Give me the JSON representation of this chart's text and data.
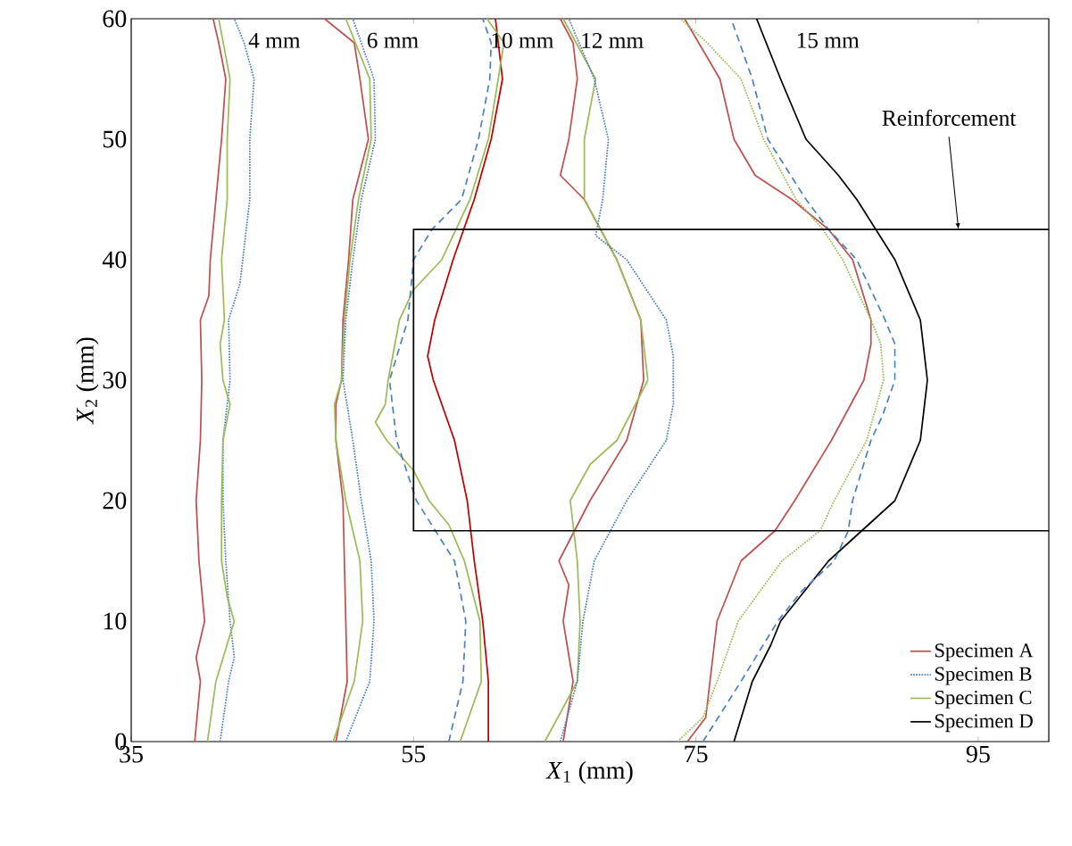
{
  "chart_data": {
    "type": "line",
    "xlabel": "*X*$_{1}$ (mm)",
    "ylabel": "*X*$_{2}$ (mm)",
    "xlim": [
      35,
      100
    ],
    "ylim": [
      0,
      60
    ],
    "xticks": [
      35,
      55,
      75,
      95
    ],
    "yticks": [
      0,
      10,
      20,
      30,
      40,
      50,
      60
    ],
    "grid": false,
    "legend": "bottom right",
    "marker": "none",
    "series": [
      {
        "name": "Specimen A",
        "color": "#c0504d",
        "line_style": "solid",
        "x": [
          39.5,
          39.9,
          39.6,
          40.2,
          39.8,
          39.6,
          39.9,
          40.0,
          39.9,
          40.5,
          40.6,
          41.0,
          41.4,
          41.7,
          41.2,
          40.8
        ],
        "values": [
          0,
          5,
          7,
          10,
          15,
          20,
          25,
          30,
          35,
          37,
          40,
          45,
          50,
          55,
          58,
          60
        ]
      },
      {
        "name": "Specimen B",
        "color": "#4f81bd",
        "line_style": "dotted",
        "x": [
          41.3,
          41.9,
          42.3,
          42.0,
          41.7,
          41.5,
          41.5,
          42.0,
          41.9,
          42.7,
          42.9,
          43.4,
          43.4,
          43.7,
          43.0,
          42.3
        ],
        "values": [
          0,
          5,
          7,
          10,
          15,
          20,
          25,
          30,
          35,
          38,
          40,
          45,
          50,
          55,
          58,
          60
        ]
      },
      {
        "name": "Specimen C",
        "color": "#9bbb59",
        "line_style": "solid",
        "x": [
          40.4,
          41.0,
          42.3,
          41.8,
          41.4,
          41.4,
          41.5,
          42.0,
          41.5,
          41.3,
          41.6,
          41.4,
          41.8,
          41.8,
          42.0,
          41.2
        ],
        "values": [
          0,
          5,
          10,
          12,
          15,
          20,
          25,
          28,
          30,
          33,
          35,
          40,
          45,
          50,
          55,
          60
        ]
      },
      {
        "name": "Specimen D",
        "color": "#000000",
        "line_style": "solid",
        "x": [
          77.7,
          79.0,
          80.3,
          81.0,
          84.4,
          89.1,
          90.9,
          91.4,
          90.9,
          89.1,
          86.4,
          85.1,
          82.8,
          81.0,
          79.3
        ],
        "values": [
          0,
          5,
          8,
          10,
          15,
          20,
          25,
          30,
          35,
          40,
          45,
          47,
          50,
          55,
          60
        ]
      },
      {
        "color": "#c0504d",
        "line_style": "solid",
        "x": [
          49.5,
          50.3,
          50.2,
          50.1,
          50.0,
          49.5,
          49.5,
          49.9,
          50.0,
          50.4,
          50.7,
          51.8,
          51.2,
          50.8,
          48.7
        ],
        "values": [
          0,
          5,
          10,
          15,
          20,
          25,
          28,
          30,
          35,
          40,
          45,
          50,
          55,
          58,
          60
        ]
      },
      {
        "color": "#9bbb59",
        "line_style": "solid",
        "x": [
          49.3,
          50.8,
          51.4,
          51.2,
          50.2,
          49.5,
          49.4,
          49.9,
          50.1,
          50.5,
          51.1,
          52.0,
          51.9,
          50.2
        ],
        "values": [
          0,
          5,
          10,
          15,
          20,
          25,
          28,
          30,
          35,
          40,
          45,
          50,
          55,
          60
        ]
      },
      {
        "color": "#4f81bd",
        "line_style": "dotted",
        "x": [
          50.2,
          51.9,
          52.2,
          52.0,
          51.3,
          50.7,
          50.0,
          50.2,
          50.7,
          51.3,
          52.3,
          52.2,
          50.7
        ],
        "values": [
          0,
          5,
          10,
          15,
          20,
          25,
          30,
          35,
          40,
          45,
          50,
          55,
          60
        ]
      },
      {
        "color": "#c00000",
        "line_style": "solid",
        "x": [
          60.3,
          60.3,
          59.9,
          59.3,
          58.8,
          57.9,
          56.4,
          56.0,
          56.5,
          57.8,
          59.3,
          60.5,
          61.3,
          60.8
        ],
        "values": [
          0,
          5,
          10,
          15,
          20,
          25,
          30,
          32,
          35,
          40,
          45,
          50,
          55,
          60
        ]
      },
      {
        "color": "#9bbb59",
        "line_style": "solid",
        "x": [
          58.3,
          59.8,
          59.7,
          58.6,
          57.5,
          56.1,
          55.0,
          53.1,
          52.3,
          53.0,
          53.2,
          54.0,
          55.0,
          57.0,
          59.0,
          60.3,
          61.0,
          61.4,
          60.2
        ],
        "values": [
          0,
          5,
          10,
          15,
          18,
          20,
          22.5,
          25,
          26.5,
          28,
          30,
          35,
          37.5,
          40,
          45,
          50,
          55,
          58,
          60
        ]
      },
      {
        "color": "#4f81bd",
        "line_style": "dashed",
        "x": [
          57.5,
          58.5,
          58.7,
          57.9,
          55.2,
          53.8,
          53.3,
          54.6,
          55.0,
          56.3,
          58.4,
          59.6,
          60.4,
          60.5,
          59.9
        ],
        "values": [
          0,
          5,
          10,
          15,
          20,
          25,
          30,
          35,
          40,
          42.5,
          45,
          50,
          55,
          58,
          60
        ]
      },
      {
        "color": "#c0504d",
        "line_style": "solid",
        "x": [
          65.6,
          66.3,
          65.6,
          66.0,
          65.3,
          67.5,
          70.1,
          71.3,
          71.1,
          69.4,
          67.1,
          65.4,
          66.0,
          66.6,
          66.3,
          65.4
        ],
        "values": [
          0,
          5,
          10,
          13,
          15,
          20,
          25,
          30,
          35,
          40,
          45,
          47,
          50,
          55,
          58,
          60
        ]
      },
      {
        "color": "#9bbb59",
        "line_style": "solid",
        "x": [
          64.3,
          66.6,
          66.8,
          66.6,
          66.1,
          67.5,
          69.4,
          71.6,
          71.1,
          69.4,
          67.1,
          67.1,
          67.9,
          65.6
        ],
        "values": [
          0,
          5,
          10,
          15,
          20,
          23,
          25,
          30,
          35,
          40,
          45,
          50,
          55,
          60
        ]
      },
      {
        "color": "#4f81bd",
        "line_style": "dotted",
        "x": [
          65.4,
          66.6,
          67.0,
          67.8,
          70.1,
          72.9,
          73.4,
          73.4,
          72.9,
          70.1,
          67.9,
          68.4,
          68.8,
          67.8,
          66.0
        ],
        "values": [
          0,
          5,
          10,
          15,
          20,
          25,
          28,
          32,
          35,
          40,
          42,
          45,
          50,
          55,
          60
        ]
      },
      {
        "color": "#c0504d",
        "line_style": "solid",
        "x": [
          74.4,
          75.7,
          76.0,
          76.5,
          78.2,
          80.6,
          82.0,
          84.6,
          86.9,
          87.4,
          87.4,
          86.1,
          84.4,
          81.8,
          79.2,
          77.7,
          76.7,
          74.2
        ],
        "values": [
          0,
          2,
          5,
          10,
          15,
          17.5,
          20,
          25,
          30,
          33,
          35,
          40,
          42.5,
          45,
          47,
          50,
          55,
          60
        ]
      },
      {
        "color": "#9bbb59",
        "line_style": "dotted",
        "x": [
          73.7,
          75.5,
          76.5,
          78.0,
          81.1,
          83.8,
          84.8,
          87.1,
          88.3,
          88.1,
          87.4,
          85.4,
          84.0,
          82.1,
          79.8,
          78.2,
          75.8,
          73.9
        ],
        "values": [
          0,
          2,
          5,
          10,
          15,
          17.5,
          20,
          25,
          30,
          33,
          35,
          40,
          42.5,
          45,
          50,
          55,
          58,
          60
        ]
      },
      {
        "color": "#4f81bd",
        "line_style": "dashed",
        "x": [
          75.5,
          78.2,
          80.8,
          82.5,
          84.8,
          85.8,
          86.1,
          87.4,
          88.2,
          89.1,
          89.1,
          88.4,
          86.4,
          84.4,
          82.8,
          80.1,
          79.0,
          77.5
        ],
        "values": [
          0,
          5,
          10,
          12.5,
          15,
          17.5,
          20,
          25,
          27,
          30,
          33,
          35,
          40,
          42.5,
          45,
          50,
          55,
          60
        ]
      },
      {
        "color": "#000000",
        "line_style": "solid",
        "x": [
          100,
          55,
          55,
          100
        ],
        "values": [
          42.5,
          42.5,
          17.5,
          17.5
        ]
      }
    ],
    "annotations": [
      "4 mm",
      "6 mm",
      "10 mm",
      "12 mm",
      "15 mm",
      {
        "text": "Reinforcement",
        "x": 93.6,
        "y": 42.5
      }
    ]
  }
}
